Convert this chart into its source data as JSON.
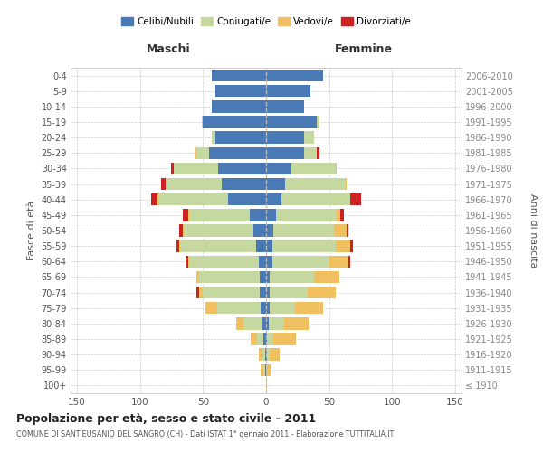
{
  "age_groups": [
    "100+",
    "95-99",
    "90-94",
    "85-89",
    "80-84",
    "75-79",
    "70-74",
    "65-69",
    "60-64",
    "55-59",
    "50-54",
    "45-49",
    "40-44",
    "35-39",
    "30-34",
    "25-29",
    "20-24",
    "15-19",
    "10-14",
    "5-9",
    "0-4"
  ],
  "birth_years": [
    "≤ 1910",
    "1911-1915",
    "1916-1920",
    "1921-1925",
    "1926-1930",
    "1931-1935",
    "1936-1940",
    "1941-1945",
    "1946-1950",
    "1951-1955",
    "1956-1960",
    "1961-1965",
    "1966-1970",
    "1971-1975",
    "1976-1980",
    "1981-1985",
    "1986-1990",
    "1991-1995",
    "1996-2000",
    "2001-2005",
    "2006-2010"
  ],
  "maschi": {
    "celibi": [
      0,
      1,
      1,
      2,
      3,
      4,
      5,
      5,
      6,
      8,
      10,
      13,
      30,
      35,
      38,
      45,
      40,
      50,
      43,
      40,
      43
    ],
    "coniugati": [
      0,
      1,
      2,
      5,
      15,
      35,
      45,
      48,
      55,
      60,
      55,
      48,
      55,
      45,
      35,
      10,
      3,
      1,
      0,
      0,
      0
    ],
    "vedovi": [
      0,
      2,
      3,
      5,
      6,
      9,
      3,
      2,
      1,
      1,
      1,
      1,
      1,
      0,
      0,
      1,
      0,
      0,
      0,
      0,
      0
    ],
    "divorziati": [
      0,
      0,
      0,
      0,
      0,
      0,
      2,
      0,
      2,
      2,
      3,
      4,
      5,
      3,
      2,
      0,
      0,
      0,
      0,
      0,
      0
    ]
  },
  "femmine": {
    "nubili": [
      0,
      0,
      1,
      1,
      2,
      3,
      3,
      3,
      5,
      5,
      6,
      8,
      12,
      15,
      20,
      30,
      30,
      40,
      30,
      35,
      45
    ],
    "coniugate": [
      0,
      1,
      2,
      5,
      12,
      20,
      30,
      35,
      45,
      50,
      48,
      48,
      55,
      48,
      35,
      10,
      8,
      2,
      0,
      0,
      0
    ],
    "vedove": [
      1,
      3,
      8,
      18,
      20,
      22,
      22,
      20,
      15,
      12,
      10,
      3,
      0,
      1,
      1,
      0,
      0,
      0,
      0,
      0,
      0
    ],
    "divorziate": [
      0,
      0,
      0,
      0,
      0,
      0,
      0,
      0,
      2,
      2,
      1,
      3,
      8,
      0,
      0,
      2,
      0,
      0,
      0,
      0,
      0
    ]
  },
  "colors": {
    "celibi_nubili": "#4a7ab5",
    "coniugati": "#c5d8a0",
    "vedovi": "#f0c060",
    "divorziati": "#cc2222"
  },
  "title": "Popolazione per età, sesso e stato civile - 2011",
  "subtitle": "COMUNE DI SANT'EUSANIO DEL SANGRO (CH) - Dati ISTAT 1° gennaio 2011 - Elaborazione TUTTITALIA.IT",
  "ylabel_left": "Fasce di età",
  "ylabel_right": "Anni di nascita",
  "xlabel_maschi": "Maschi",
  "xlabel_femmine": "Femmine",
  "xlim": 155,
  "background_color": "#ffffff",
  "grid_color": "#cccccc",
  "legend_labels": [
    "Celibi/Nubili",
    "Coniugati/e",
    "Vedovi/e",
    "Divorziati/e"
  ]
}
